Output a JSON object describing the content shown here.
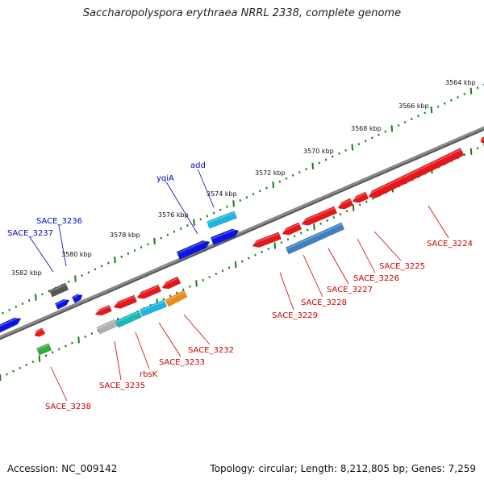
{
  "title": "Saccharopolyspora erythraea NRRL 2338, complete genome",
  "footer": {
    "accession_label": "Accession: NC_009142",
    "topology_label": "Topology: circular; Length: 8,212,805 bp; Genes: 7,259"
  },
  "colors": {
    "backbone": "#8a8a8a",
    "forward_label": "#0000cc",
    "reverse_label": "#cc0000",
    "tick": "#1a7a1a"
  },
  "scale_labels": [
    "3564 kbp",
    "3566 kbp",
    "3568 kbp",
    "3570 kbp",
    "3572 kbp",
    "3574 kbp",
    "3576 kbp",
    "3578 kbp",
    "3580 kbp",
    "3582 kbp"
  ],
  "forward_gene_labels": [
    "SACE_3237",
    "SACE_3236",
    "yqiA",
    "add"
  ],
  "reverse_gene_labels": [
    "SACE_3224",
    "SACE_3225",
    "SACE_3226",
    "SACE_3227",
    "SACE_3228",
    "SACE_3229",
    "SACE_3232",
    "SACE_3233",
    "rbsK",
    "SACE_3235",
    "SACE_3238"
  ]
}
